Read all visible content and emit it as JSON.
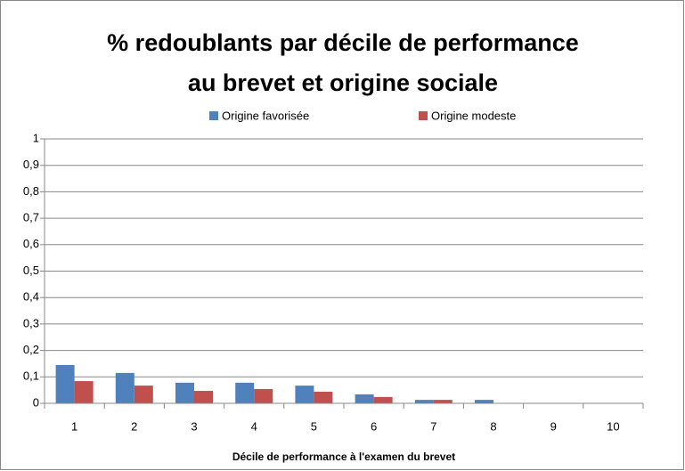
{
  "chart_data": {
    "type": "bar",
    "title": [
      "% redoublants par décile de performance",
      "au brevet et origine sociale"
    ],
    "x_label": "Décile de performance à l'examen du brevet",
    "categories": [
      "1",
      "2",
      "3",
      "4",
      "5",
      "6",
      "7",
      "8",
      "9",
      "10"
    ],
    "series": [
      {
        "name": "Origine favorisée",
        "color": "#4f81bd",
        "values": [
          0.145,
          0.115,
          0.078,
          0.078,
          0.067,
          0.034,
          0.013,
          0.013,
          0,
          0
        ]
      },
      {
        "name": "Origine modeste",
        "color": "#c0504d",
        "values": [
          0.084,
          0.067,
          0.047,
          0.054,
          0.044,
          0.024,
          0.013,
          0,
          0,
          0
        ]
      }
    ],
    "ylim": [
      0,
      1
    ],
    "yticks": [
      0,
      {
        "value": 0.1,
        "label": "0,1"
      },
      {
        "value": 0.2,
        "label": "0,2"
      },
      {
        "value": 0.3,
        "label": "0,3"
      },
      {
        "value": 0.4,
        "label": "0,4"
      },
      {
        "value": 0.5,
        "label": "0,5"
      },
      {
        "value": 0.6,
        "label": "0,6"
      },
      {
        "value": 0.7,
        "label": "0,7"
      },
      {
        "value": 0.8,
        "label": "0,8"
      },
      {
        "value": 0.9,
        "label": "0,9"
      },
      1
    ],
    "grid": true,
    "legend": "top"
  }
}
